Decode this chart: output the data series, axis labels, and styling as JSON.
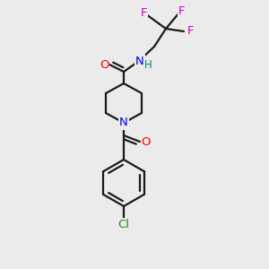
{
  "bg_color": "#ebebeb",
  "bond_color": "#1a1a1a",
  "bond_width": 1.6,
  "atom_colors": {
    "O": "#ff0000",
    "N_amide": "#0000ee",
    "N_pip": "#0000ee",
    "H": "#008080",
    "F": "#cc00cc",
    "Cl": "#228B22",
    "C": "#1a1a1a"
  },
  "font_size": 9.5,
  "figsize": [
    3.0,
    3.0
  ],
  "dpi": 100
}
